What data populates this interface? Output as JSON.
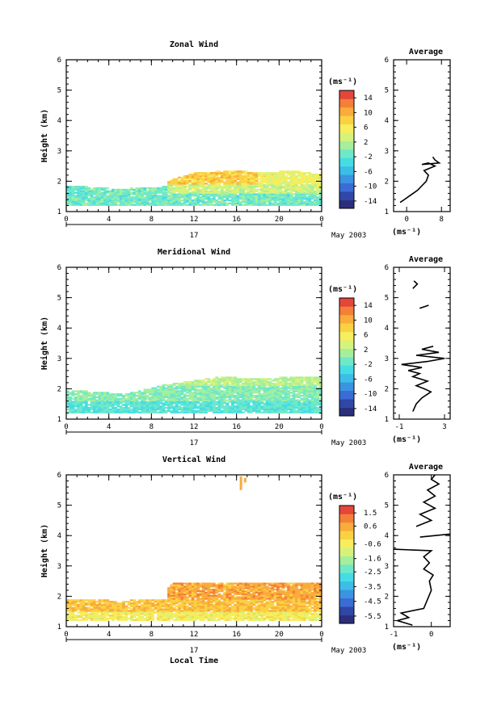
{
  "chart_data": [
    {
      "type": "heatmap",
      "title": "Zonal Wind",
      "ylabel": "Height (km)",
      "xlabel": "",
      "day_label": "17",
      "month_label": "May 2003",
      "x_ticks": [
        "0",
        "4",
        "8",
        "12",
        "16",
        "20",
        "0"
      ],
      "y_ticks": [
        "1",
        "2",
        "3",
        "4",
        "5",
        "6"
      ],
      "ylim": [
        1,
        6
      ],
      "xlim_hours": [
        0,
        24
      ],
      "colorbar": {
        "unit": "(ms⁻¹)",
        "range": [
          -16,
          16
        ],
        "ticks": [
          "14",
          "10",
          "6",
          "2",
          "-2",
          "-6",
          "-10",
          "-14"
        ],
        "tick_values": [
          14,
          10,
          6,
          2,
          -2,
          -6,
          -10,
          -14
        ]
      },
      "data_top_profile": {
        "hours": [
          0,
          2,
          4,
          6,
          8,
          9,
          10,
          12,
          14,
          16,
          18,
          20,
          22,
          24
        ],
        "top_km": [
          1.85,
          1.8,
          1.75,
          1.75,
          1.8,
          1.8,
          2.05,
          2.25,
          2.3,
          2.35,
          2.25,
          2.3,
          2.3,
          2.2
        ]
      },
      "regions": [
        {
          "h0": 0,
          "h1": 9.5,
          "z0": 1.2,
          "z1": 1.85,
          "value": -1
        },
        {
          "h0": 9.5,
          "h1": 24,
          "z0": 1.2,
          "z1": 1.6,
          "value": -1
        },
        {
          "h0": 9.5,
          "h1": 24,
          "z0": 1.6,
          "z1": 1.9,
          "value": 3
        },
        {
          "h0": 9.5,
          "h1": 18,
          "z0": 1.9,
          "z1": 2.35,
          "value": 8
        },
        {
          "h0": 18,
          "h1": 24,
          "z0": 1.9,
          "z1": 2.3,
          "value": 5
        }
      ],
      "profile": {
        "title": "Average",
        "xlabel": "(ms⁻¹)",
        "x_ticks": [
          "0",
          "8"
        ],
        "x_tick_values": [
          0,
          8
        ],
        "xlim": [
          -3,
          10
        ],
        "y_ticks": [
          "1",
          "2",
          "3",
          "4",
          "5",
          "6"
        ],
        "segments": [
          [
            [
              -1.5,
              1.3
            ],
            [
              -0.5,
              1.4
            ],
            [
              1,
              1.55
            ],
            [
              2.5,
              1.7
            ],
            [
              3.5,
              1.85
            ],
            [
              4.5,
              2.0
            ],
            [
              5,
              2.2
            ],
            [
              4,
              2.35
            ],
            [
              6.5,
              2.5
            ],
            [
              5,
              2.6
            ],
            [
              3.5,
              2.55
            ],
            [
              7.5,
              2.6
            ],
            [
              6.5,
              2.7
            ],
            [
              6,
              2.8
            ]
          ]
        ]
      }
    },
    {
      "type": "heatmap",
      "title": "Meridional Wind",
      "ylabel": "Height (km)",
      "xlabel": "",
      "day_label": "17",
      "month_label": "May 2003",
      "x_ticks": [
        "0",
        "4",
        "8",
        "12",
        "16",
        "20",
        "0"
      ],
      "y_ticks": [
        "1",
        "2",
        "3",
        "4",
        "5",
        "6"
      ],
      "ylim": [
        1,
        6
      ],
      "xlim_hours": [
        0,
        24
      ],
      "colorbar": {
        "unit": "(ms⁻¹)",
        "range": [
          -16,
          16
        ],
        "ticks": [
          "14",
          "10",
          "6",
          "2",
          "-2",
          "-6",
          "-10",
          "-14"
        ],
        "tick_values": [
          14,
          10,
          6,
          2,
          -2,
          -6,
          -10,
          -14
        ]
      },
      "data_top_profile": {
        "hours": [
          0,
          2,
          4,
          6,
          8,
          9,
          10,
          12,
          14,
          16,
          18,
          20,
          22,
          24
        ],
        "top_km": [
          1.95,
          1.9,
          1.85,
          1.85,
          2.0,
          2.1,
          2.15,
          2.25,
          2.35,
          2.35,
          2.3,
          2.35,
          2.35,
          2.4
        ]
      },
      "regions": [
        {
          "h0": 0,
          "h1": 24,
          "z0": 1.2,
          "z1": 1.6,
          "value": -2
        },
        {
          "h0": 0,
          "h1": 24,
          "z0": 1.6,
          "z1": 2.1,
          "value": 0
        },
        {
          "h0": 8,
          "h1": 24,
          "z0": 2.1,
          "z1": 2.4,
          "value": 2
        }
      ],
      "profile": {
        "title": "Average",
        "xlabel": "(ms⁻¹)",
        "x_ticks": [
          "-1",
          "3"
        ],
        "x_tick_values": [
          -1,
          3
        ],
        "xlim": [
          -1.5,
          3.5
        ],
        "y_ticks": [
          "1",
          "2",
          "3",
          "4",
          "5",
          "6"
        ],
        "segments": [
          [
            [
              0.2,
              1.25
            ],
            [
              0.5,
              1.5
            ],
            [
              1.0,
              1.7
            ],
            [
              1.8,
              1.9
            ],
            [
              1.2,
              2.0
            ],
            [
              0.5,
              2.1
            ],
            [
              1.5,
              2.25
            ],
            [
              0.2,
              2.4
            ],
            [
              0.8,
              2.5
            ],
            [
              -0.2,
              2.6
            ],
            [
              1.0,
              2.7
            ],
            [
              -0.8,
              2.8
            ],
            [
              1.5,
              2.9
            ],
            [
              3.0,
              3.0
            ],
            [
              0.5,
              3.1
            ],
            [
              2.5,
              3.2
            ],
            [
              1.0,
              3.3
            ],
            [
              2.0,
              3.4
            ]
          ],
          [
            [
              0.8,
              4.65
            ],
            [
              1.6,
              4.75
            ]
          ],
          [
            [
              0.2,
              5.3
            ],
            [
              0.6,
              5.45
            ],
            [
              0.3,
              5.55
            ]
          ]
        ]
      }
    },
    {
      "type": "heatmap",
      "title": "Vertical Wind",
      "ylabel": "Height (km)",
      "xlabel": "Local Time",
      "day_label": "17",
      "month_label": "May 2003",
      "x_ticks": [
        "0",
        "4",
        "8",
        "12",
        "16",
        "20",
        "0"
      ],
      "y_ticks": [
        "1",
        "2",
        "3",
        "4",
        "5",
        "6"
      ],
      "ylim": [
        1,
        6
      ],
      "xlim_hours": [
        0,
        24
      ],
      "colorbar": {
        "unit": "(ms⁻¹)",
        "range": [
          -6.0,
          2.0
        ],
        "ticks": [
          "1.5",
          "0.6",
          "-0.6",
          "-1.6",
          "-2.5",
          "-3.5",
          "-4.5",
          "-5.5"
        ],
        "tick_values": [
          1.5,
          0.6,
          -0.6,
          -1.6,
          -2.5,
          -3.5,
          -4.5,
          -5.5
        ]
      },
      "data_top_profile": {
        "hours": [
          0,
          2,
          4,
          6,
          8,
          9,
          10,
          12,
          14,
          16,
          18,
          20,
          22,
          24
        ],
        "top_km": [
          1.95,
          1.9,
          1.85,
          1.85,
          1.9,
          2.0,
          2.4,
          2.4,
          2.4,
          2.4,
          2.4,
          2.4,
          2.4,
          2.4
        ]
      },
      "regions": [
        {
          "h0": 0,
          "h1": 24,
          "z0": 1.2,
          "z1": 1.5,
          "value": -0.6
        },
        {
          "h0": 0,
          "h1": 9.5,
          "z0": 1.5,
          "z1": 1.9,
          "value": 0.2
        },
        {
          "h0": 9.5,
          "h1": 24,
          "z0": 1.5,
          "z1": 1.9,
          "value": 0.2
        },
        {
          "h0": 9.5,
          "h1": 24,
          "z0": 1.9,
          "z1": 2.4,
          "value": 0.6
        }
      ],
      "specks": [
        {
          "h": 16.3,
          "z0": 5.5,
          "z1": 5.95,
          "value": 0.8
        },
        {
          "h": 16.7,
          "z0": 5.75,
          "z1": 5.9,
          "value": 0.8
        }
      ],
      "profile": {
        "title": "Average",
        "xlabel": "(ms⁻¹)",
        "x_ticks": [
          "-1",
          "0"
        ],
        "x_tick_values": [
          -1,
          0
        ],
        "xlim": [
          -1.0,
          0.5
        ],
        "y_ticks": [
          "1",
          "2",
          "3",
          "4",
          "5",
          "6"
        ],
        "segments": [
          [
            [
              -0.5,
              1.05
            ],
            [
              -0.9,
              1.2
            ],
            [
              -0.6,
              1.3
            ],
            [
              -0.8,
              1.45
            ],
            [
              -0.2,
              1.6
            ],
            [
              -0.1,
              1.9
            ],
            [
              0.0,
              2.2
            ],
            [
              -0.05,
              2.5
            ],
            [
              0.05,
              2.7
            ],
            [
              -0.2,
              2.9
            ],
            [
              -0.05,
              3.1
            ],
            [
              -0.2,
              3.3
            ],
            [
              0.0,
              3.5
            ],
            [
              -1.0,
              3.55
            ]
          ],
          [
            [
              -0.3,
              3.95
            ],
            [
              0.5,
              4.05
            ]
          ],
          [
            [
              -0.4,
              4.3
            ],
            [
              0.0,
              4.5
            ],
            [
              -0.3,
              4.7
            ],
            [
              0.1,
              4.9
            ],
            [
              -0.2,
              5.1
            ],
            [
              0.1,
              5.3
            ],
            [
              -0.1,
              5.5
            ],
            [
              0.2,
              5.7
            ],
            [
              0.0,
              5.85
            ],
            [
              0.1,
              6.0
            ]
          ]
        ]
      }
    }
  ]
}
